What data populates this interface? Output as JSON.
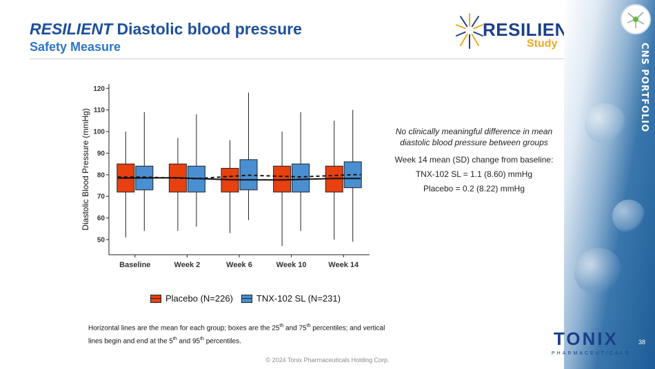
{
  "header": {
    "title_italic": "RESILIENT",
    "title_rest": " Diastolic blood pressure",
    "subtitle": "Safety Measure"
  },
  "brand": {
    "resilient_main": "RESILIENT",
    "resilient_sub": "Study",
    "side_label": "CNS PORTFOLIO",
    "tonix_word": "TONIX",
    "tonix_sub": "PHARMACEUTICALS",
    "colors": {
      "navy": "#1b3f8a",
      "gold": "#f0a81e",
      "accent_blue": "#2e74c9"
    }
  },
  "annotations": {
    "note": "No clinically meaningful difference in mean diastolic blood pressure between groups",
    "line1": "Week 14 mean (SD) change from baseline:",
    "line2": "TNX-102 SL  = 1.1 (8.60) mmHg",
    "line3": "Placebo = 0.2 (8.22) mmHg"
  },
  "footnote": {
    "part1": "Horizontal lines are the mean for each group; boxes are the 25",
    "sup1": "th",
    "part2": " and 75",
    "sup2": "th",
    "part3": " percentiles; and vertical lines begin and end at the 5",
    "sup3": "th",
    "part4": " and 95",
    "sup4": "th",
    "part5": " percentiles."
  },
  "page_number": "38",
  "copyright": "© 2024 Tonix Pharmaceuticals Holding Corp.",
  "chart_data": {
    "type": "box",
    "title": "",
    "xlabel": "",
    "ylabel": "Diastolic Blood Pressure (mmHg)",
    "ylim": [
      43,
      122
    ],
    "yticks": [
      50,
      60,
      70,
      80,
      90,
      100,
      110,
      120
    ],
    "categories": [
      "Baseline",
      "Week 2",
      "Week 6",
      "Week 10",
      "Week 14"
    ],
    "grid": false,
    "legend_position": "bottom",
    "series": [
      {
        "name": "Placebo (N=226)",
        "color": "#e8400f",
        "mean_line_style": "solid",
        "boxes": [
          {
            "q1": 72,
            "q3": 85,
            "p5": 51,
            "p95": 100,
            "mean": 78.5
          },
          {
            "q1": 72,
            "q3": 85,
            "p5": 54,
            "p95": 97,
            "mean": 78.6
          },
          {
            "q1": 72,
            "q3": 83,
            "p5": 53,
            "p95": 96,
            "mean": 77.7
          },
          {
            "q1": 72,
            "q3": 84,
            "p5": 47,
            "p95": 100,
            "mean": 77.6
          },
          {
            "q1": 72,
            "q3": 84,
            "p5": 50,
            "p95": 105,
            "mean": 78.3
          }
        ]
      },
      {
        "name": "TNX-102 SL (N=231)",
        "color": "#4a8fd1",
        "mean_line_style": "dashed",
        "boxes": [
          {
            "q1": 73,
            "q3": 84,
            "p5": 54,
            "p95": 109,
            "mean": 78.9
          },
          {
            "q1": 72,
            "q3": 84,
            "p5": 56,
            "p95": 108,
            "mean": 78.2
          },
          {
            "q1": 73,
            "q3": 87,
            "p5": 59,
            "p95": 118,
            "mean": 79.8
          },
          {
            "q1": 72,
            "q3": 85,
            "p5": 54,
            "p95": 109,
            "mean": 79.0
          },
          {
            "q1": 74,
            "q3": 86,
            "p5": 49,
            "p95": 110,
            "mean": 80.0
          }
        ]
      }
    ]
  }
}
